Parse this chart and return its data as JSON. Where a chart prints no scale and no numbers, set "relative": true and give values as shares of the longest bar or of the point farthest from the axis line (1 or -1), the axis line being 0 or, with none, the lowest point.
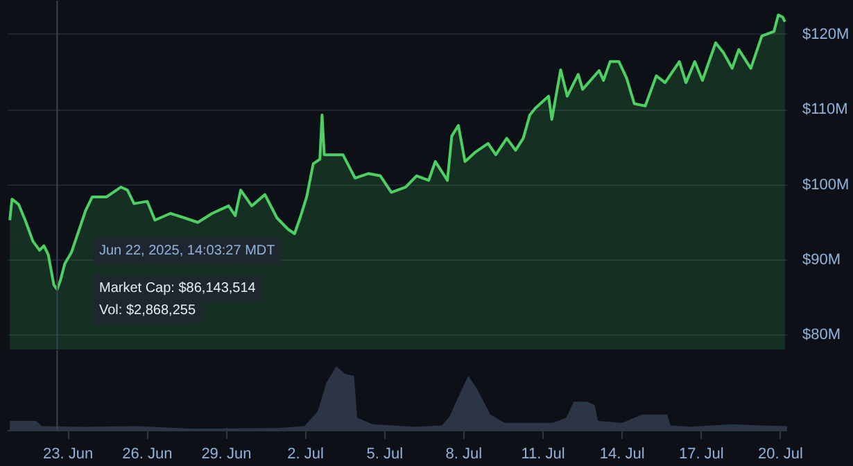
{
  "chart_data": [
    {
      "type": "area",
      "color": "#4ccf63",
      "grid": "y",
      "tick_labels": "y",
      "xlim": [
        "2025-06-20T17:00",
        "2025-07-20T06:00"
      ],
      "ylim": [
        78,
        124.5
      ],
      "yticks": [
        {
          "value": 80,
          "label": "$80M"
        },
        {
          "value": 90,
          "label": "$90M"
        },
        {
          "value": 100,
          "label": "$100M"
        },
        {
          "value": 110,
          "label": "$110M"
        },
        {
          "value": 120,
          "label": "$120M"
        }
      ],
      "x": [
        "2025-06-20T19:00",
        "2025-06-20T21:00",
        "2025-06-21T03:00",
        "2025-06-21T09:00",
        "2025-06-21T16:00",
        "2025-06-21T22:00",
        "2025-06-22T02:00",
        "2025-06-22T06:00",
        "2025-06-22T11:00",
        "2025-06-22T14:03",
        "2025-06-22T17:00",
        "2025-06-22T21:00",
        "2025-06-23T03:00",
        "2025-06-23T16:00",
        "2025-06-23T22:00",
        "2025-06-24T11:00",
        "2025-06-25T00:00",
        "2025-06-25T06:00",
        "2025-06-25T12:00",
        "2025-06-26T00:00",
        "2025-06-26T07:00",
        "2025-06-26T21:00",
        "2025-06-27T10:00",
        "2025-06-27T22:00",
        "2025-06-28T11:00",
        "2025-06-29T02:00",
        "2025-06-29T08:00",
        "2025-06-29T13:00",
        "2025-06-29T23:00",
        "2025-06-30T11:00",
        "2025-06-30T22:00",
        "2025-07-01T08:00",
        "2025-07-01T14:00",
        "2025-07-01T19:00",
        "2025-07-02T01:00",
        "2025-07-02T07:00",
        "2025-07-02T13:00",
        "2025-07-02T15:00",
        "2025-07-02T17:00",
        "2025-07-03T00:00",
        "2025-07-03T10:00",
        "2025-07-03T21:00",
        "2025-07-04T09:00",
        "2025-07-04T20:00",
        "2025-07-05T06:00",
        "2025-07-05T19:00",
        "2025-07-06T05:00",
        "2025-07-06T16:00",
        "2025-07-06T22:00",
        "2025-07-07T09:00",
        "2025-07-07T13:00",
        "2025-07-07T19:00",
        "2025-07-08T01:00",
        "2025-07-08T10:00",
        "2025-07-08T22:00",
        "2025-07-09T05:00",
        "2025-07-09T15:00",
        "2025-07-09T23:00",
        "2025-07-10T06:00",
        "2025-07-10T12:00",
        "2025-07-10T17:00",
        "2025-07-11T05:00",
        "2025-07-11T08:00",
        "2025-07-11T16:00",
        "2025-07-11T22:00",
        "2025-07-12T08:00",
        "2025-07-12T12:00",
        "2025-07-13T03:00",
        "2025-07-13T07:00",
        "2025-07-13T13:00",
        "2025-07-13T21:00",
        "2025-07-14T04:00",
        "2025-07-14T11:00",
        "2025-07-14T21:00",
        "2025-07-15T07:00",
        "2025-07-15T15:00",
        "2025-07-16T04:00",
        "2025-07-16T10:00",
        "2025-07-16T18:00",
        "2025-07-17T01:00",
        "2025-07-17T13:00",
        "2025-07-17T20:00",
        "2025-07-18T04:00",
        "2025-07-18T10:00",
        "2025-07-18T21:00",
        "2025-07-19T07:00",
        "2025-07-19T18:00",
        "2025-07-19T22:00",
        "2025-07-20T02:00",
        "2025-07-20T04:00"
      ],
      "values": [
        95.3,
        98.1,
        97.4,
        95.3,
        92.5,
        91.3,
        91.9,
        90.7,
        86.7,
        86.1,
        87.3,
        89.5,
        91.0,
        96.6,
        98.4,
        98.4,
        99.7,
        99.3,
        97.5,
        97.8,
        95.3,
        96.2,
        95.6,
        95.0,
        96.2,
        97.2,
        95.9,
        99.3,
        97.2,
        98.7,
        95.6,
        94.1,
        93.5,
        95.6,
        98.4,
        102.8,
        103.4,
        109.3,
        104.0,
        104.0,
        104.0,
        100.9,
        101.5,
        101.2,
        99.0,
        99.7,
        101.2,
        100.6,
        103.1,
        100.6,
        106.5,
        107.9,
        103.1,
        104.3,
        105.5,
        104.0,
        106.2,
        104.6,
        106.2,
        109.3,
        110.2,
        111.8,
        108.7,
        115.3,
        111.8,
        114.7,
        112.7,
        115.2,
        113.9,
        116.4,
        116.4,
        114.2,
        110.8,
        110.5,
        114.5,
        113.6,
        116.4,
        113.6,
        116.4,
        113.9,
        118.9,
        117.6,
        115.5,
        118.0,
        115.5,
        119.8,
        120.4,
        122.6,
        122.3,
        121.7
      ],
      "ref_lines": [
        {
          "axis": "x",
          "value": "2025-06-22T14:03",
          "color": "#3a4452"
        }
      ],
      "annotations": [
        "Jun 22, 2025, 14:03:27 MDT",
        "Market Cap: $86,143,514",
        "Vol: $2,868,255"
      ]
    },
    {
      "type": "area",
      "relative": true,
      "color": "#2b3545",
      "tick_labels": "x",
      "xlim": [
        "2025-06-20T17:00",
        "2025-07-20T06:00"
      ],
      "xticks": [
        {
          "value": "2025-06-23",
          "label": "23. Jun"
        },
        {
          "value": "2025-06-26",
          "label": "26. Jun"
        },
        {
          "value": "2025-06-29",
          "label": "29. Jun"
        },
        {
          "value": "2025-07-02",
          "label": "2. Jul"
        },
        {
          "value": "2025-07-05",
          "label": "5. Jul"
        },
        {
          "value": "2025-07-08",
          "label": "8. Jul"
        },
        {
          "value": "2025-07-11",
          "label": "11. Jul"
        },
        {
          "value": "2025-07-14",
          "label": "14. Jul"
        },
        {
          "value": "2025-07-17",
          "label": "17. Jul"
        },
        {
          "value": "2025-07-20",
          "label": "20. Jul"
        }
      ],
      "x": [
        "2025-06-20T19:00",
        "2025-06-21T19:00",
        "2025-06-22T00:00",
        "2025-06-23T14:00",
        "2025-06-25T16:00",
        "2025-06-27T18:00",
        "2025-06-30T22:00",
        "2025-07-01T23:00",
        "2025-07-02T11:00",
        "2025-07-02T19:00",
        "2025-07-03T04:00",
        "2025-07-03T12:00",
        "2025-07-03T20:00",
        "2025-07-03T23:00",
        "2025-07-04T13:00",
        "2025-07-06T03:00",
        "2025-07-07T04:00",
        "2025-07-07T11:00",
        "2025-07-07T21:00",
        "2025-07-08T04:00",
        "2025-07-08T12:00",
        "2025-07-09T00:00",
        "2025-07-09T13:00",
        "2025-07-10T20:00",
        "2025-07-11T09:00",
        "2025-07-11T21:00",
        "2025-07-12T04:00",
        "2025-07-12T16:00",
        "2025-07-12T23:00",
        "2025-07-13T02:00",
        "2025-07-14T00:00",
        "2025-07-14T18:00",
        "2025-07-15T17:00",
        "2025-07-15T20:00",
        "2025-07-16T14:00",
        "2025-07-18T04:00",
        "2025-07-19T05:00",
        "2025-07-20T06:00"
      ],
      "values": [
        0.15,
        0.15,
        0.07,
        0.06,
        0.07,
        0.03,
        0.04,
        0.07,
        0.3,
        0.75,
        1.0,
        0.88,
        0.85,
        0.2,
        0.1,
        0.06,
        0.08,
        0.22,
        0.6,
        0.85,
        0.65,
        0.25,
        0.12,
        0.12,
        0.12,
        0.2,
        0.45,
        0.45,
        0.4,
        0.15,
        0.12,
        0.25,
        0.25,
        0.08,
        0.06,
        0.1,
        0.08,
        0.07
      ],
      "ref_lines": [
        {
          "axis": "x",
          "value": "2025-06-22T14:03",
          "color": "#3a4452"
        }
      ]
    }
  ]
}
